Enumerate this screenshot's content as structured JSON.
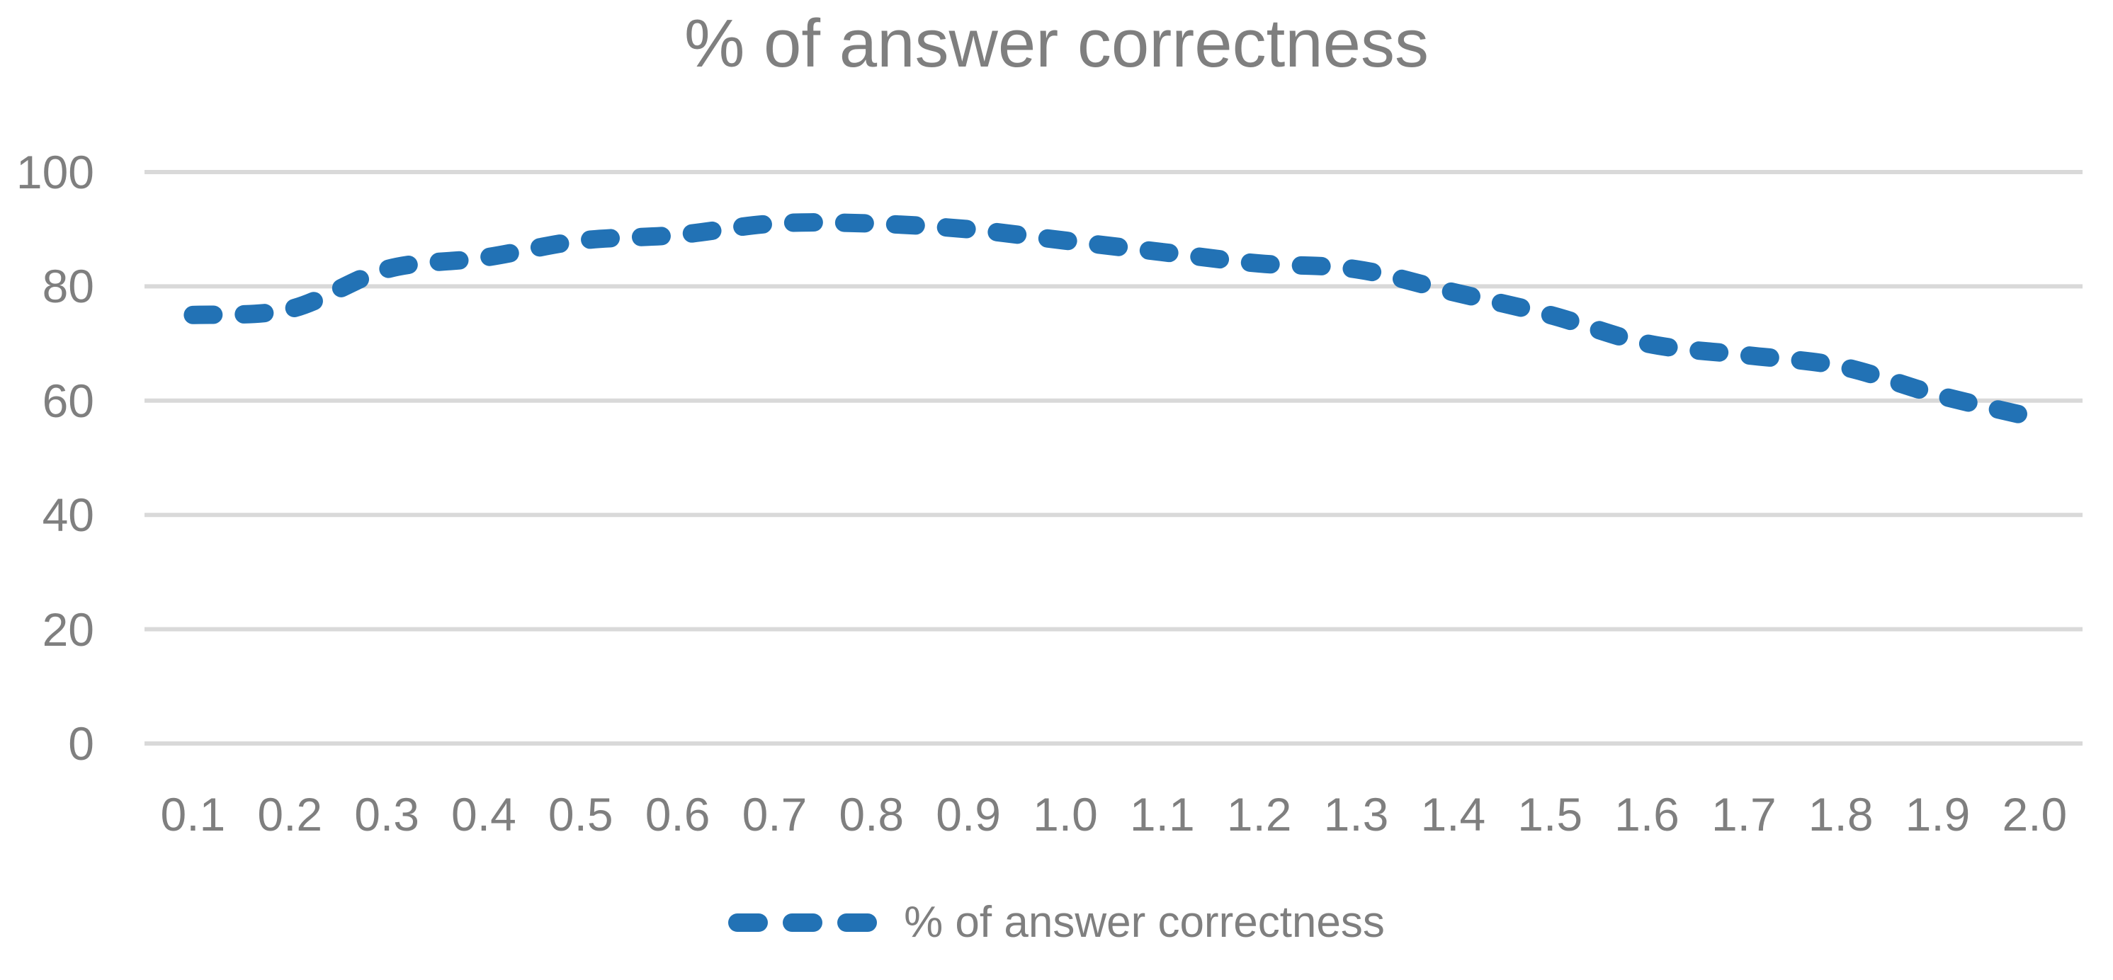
{
  "title": "% of answer correctness",
  "legend": {
    "label": "% of answer correctness",
    "position": "bottom"
  },
  "colors": {
    "line": "#2272B5",
    "grid": "#D9D9D9",
    "text": "#7F7F7F",
    "background": "#FFFFFF"
  },
  "chart_data": {
    "type": "line",
    "title": "% of answer correctness",
    "categories": [
      "0.1",
      "0.2",
      "0.3",
      "0.4",
      "0.5",
      "0.6",
      "0.7",
      "0.8",
      "0.9",
      "1.0",
      "1.1",
      "1.2",
      "1.3",
      "1.4",
      "1.5",
      "1.6",
      "1.7",
      "1.8",
      "1.9",
      "2.0"
    ],
    "series": [
      {
        "name": "% of answer correctness",
        "values": [
          75,
          76,
          83,
          85,
          88,
          89,
          91,
          91,
          90,
          88,
          86,
          84,
          83,
          79,
          75,
          70,
          68,
          66,
          61,
          57
        ]
      }
    ],
    "xlabel": "",
    "ylabel": "",
    "ylim": [
      0,
      100
    ],
    "yticks": [
      0,
      20,
      40,
      60,
      80,
      100
    ],
    "grid": "horizontal",
    "legend_position": "bottom",
    "line_style": "dashed",
    "smooth": true
  }
}
